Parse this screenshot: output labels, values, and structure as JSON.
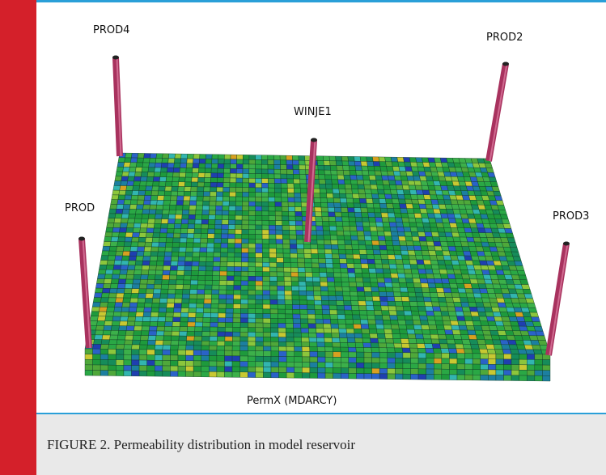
{
  "figure": {
    "well_labels": [
      "PROD4",
      "PROD2",
      "WINJE1",
      "PROD",
      "PROD3"
    ],
    "axis_label": "PermX (MDARCY)"
  },
  "caption": "FIGURE 2. Permeability distribution in model reservoir"
}
